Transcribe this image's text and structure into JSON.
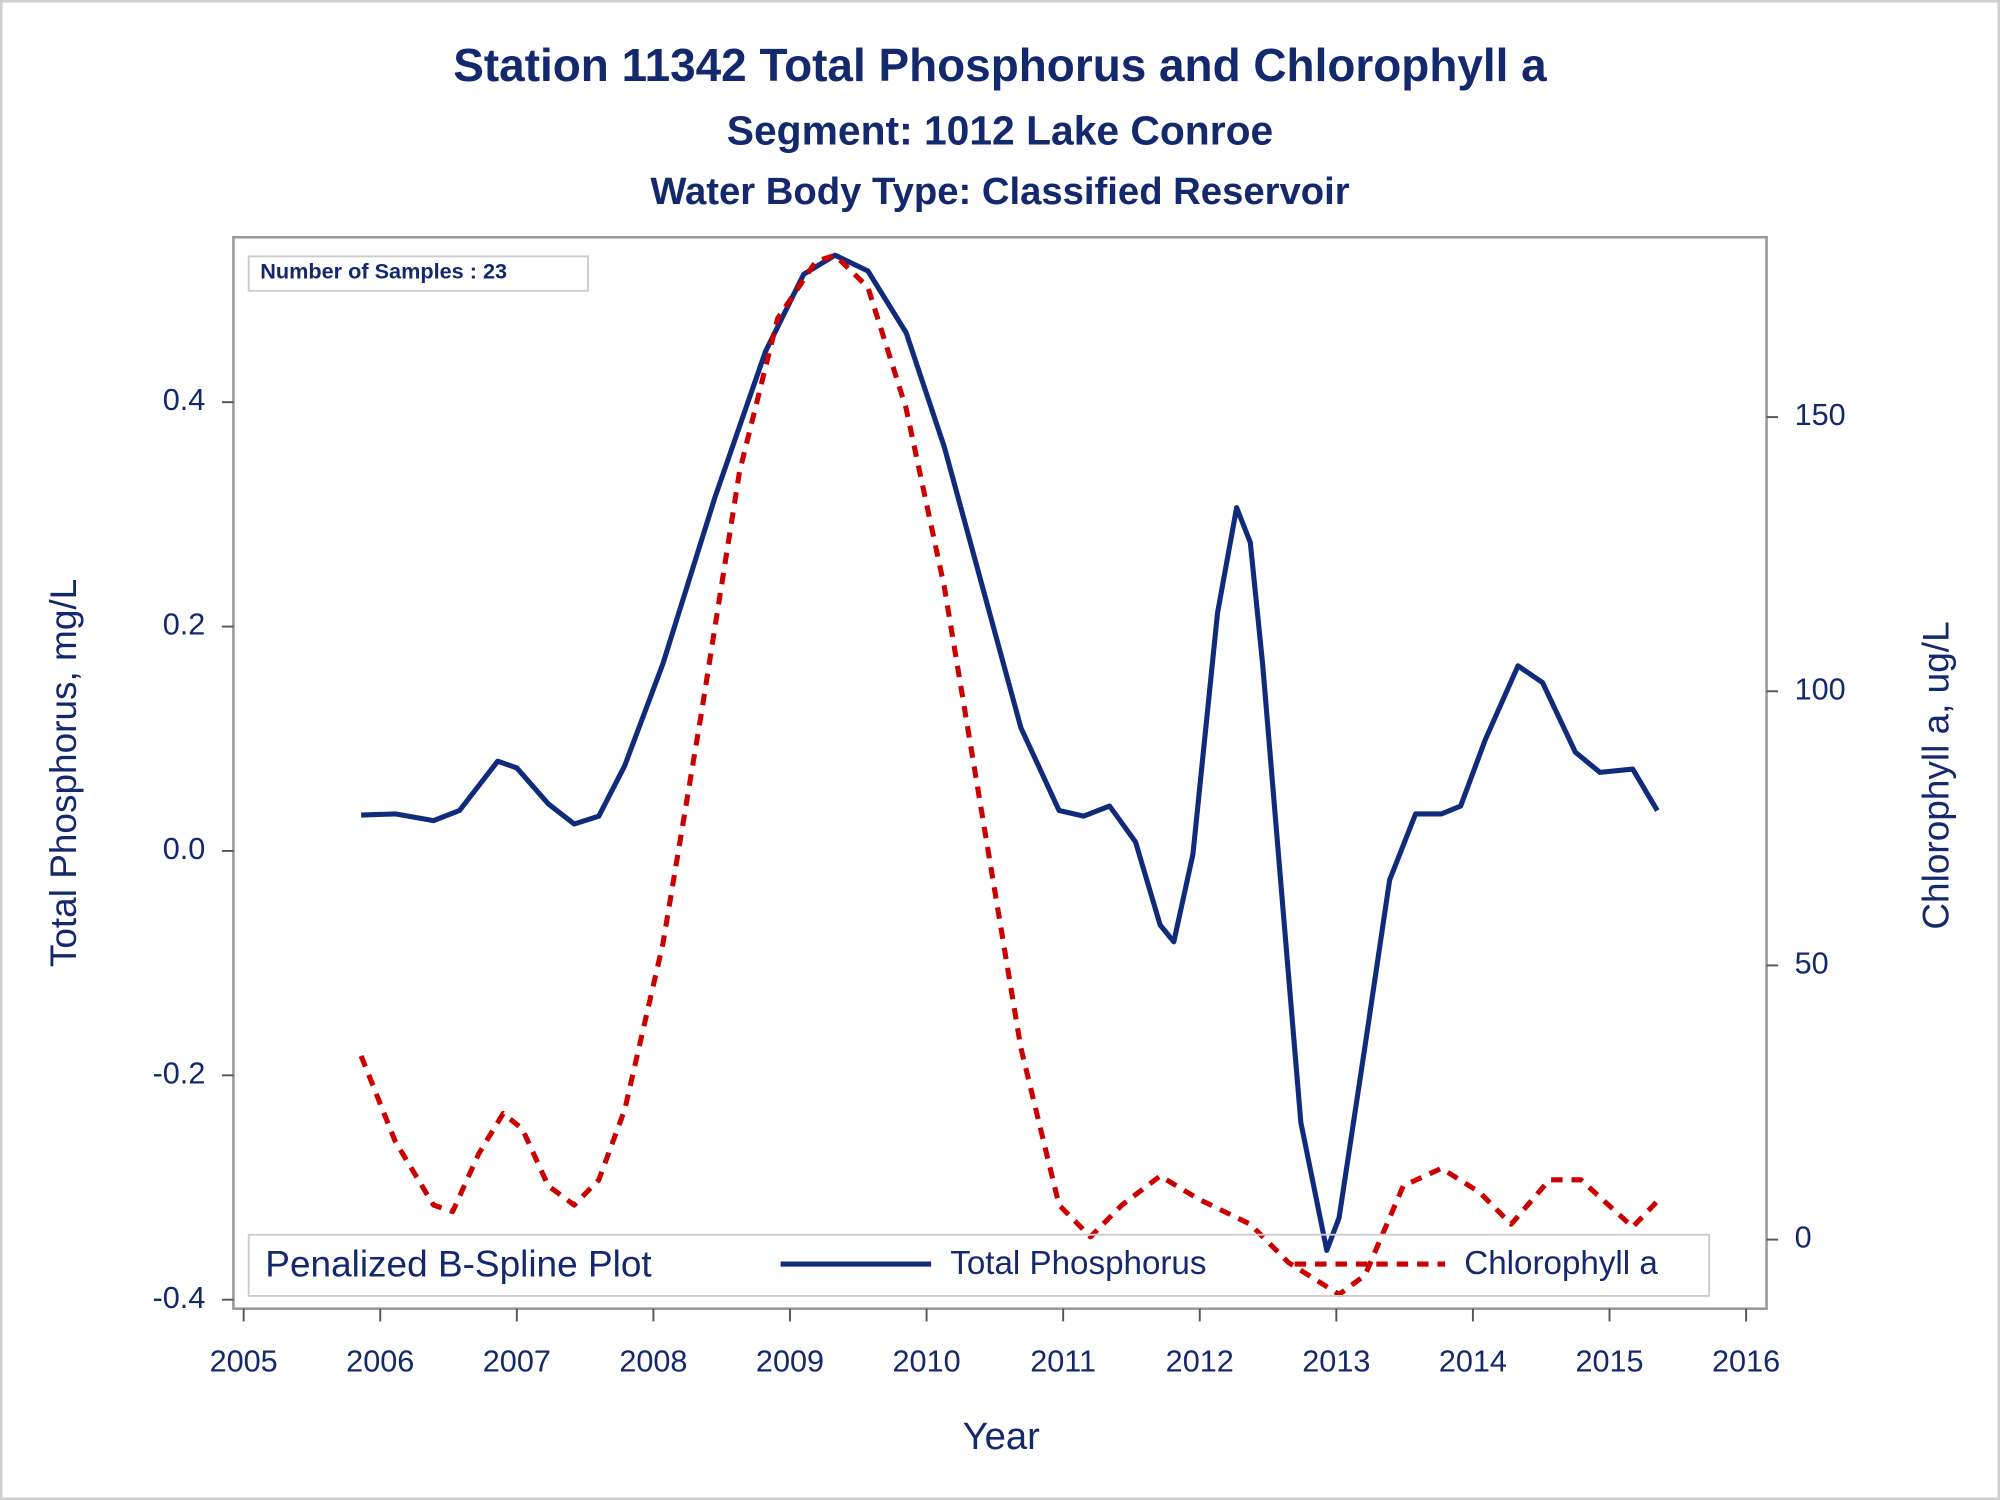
{
  "chart_data": {
    "type": "line",
    "title": "Station 11342  Total Phosphorus and Chlorophyll a",
    "subtitle": "Segment: 1012  Lake Conroe",
    "subtitle2": "Water Body Type: Classified Reservoir",
    "annotation": "Number of Samples : 23",
    "x_label": "Year",
    "y_label": "Total Phosphorus, mg/L",
    "y2_label": "Chlorophyll a, ug/L",
    "legend_title": "Penalized B-Spline Plot",
    "legend": "bottom",
    "xlim": [
      2004.925,
      2016.15
    ],
    "xticks": [
      2005,
      2006,
      2007,
      2008,
      2009,
      2010,
      2011,
      2012,
      2013,
      2014,
      2015,
      2016
    ],
    "ylim": [
      -0.408,
      0.547
    ],
    "yticks": [
      -0.4,
      -0.2,
      {
        "value": 0,
        "label": "0.0"
      },
      0.2,
      0.4
    ],
    "y2lim": [
      -12.6,
      182.8
    ],
    "y2ticks": [
      0,
      50,
      100,
      150
    ],
    "series": [
      {
        "name": "Total Phosphorus",
        "color": "#102a7c",
        "dash": false,
        "x": [
          2005.86,
          2006.11,
          2006.39,
          2006.58,
          2006.86,
          2007.0,
          2007.23,
          2007.42,
          2007.6,
          2007.79,
          2008.07,
          2008.45,
          2008.82,
          2009.1,
          2009.33,
          2009.57,
          2009.85,
          2010.13,
          2010.41,
          2010.69,
          2010.97,
          2011.15,
          2011.34,
          2011.53,
          2011.71,
          2011.81,
          2011.95,
          2012.13,
          2012.27,
          2012.37,
          2012.46,
          2012.6,
          2012.74,
          2012.93,
          2013.02,
          2013.21,
          2013.39,
          2013.58,
          2013.77,
          2013.91,
          2014.09,
          2014.33,
          2014.51,
          2014.75,
          2014.93,
          2015.17,
          2015.35
        ],
        "values": [
          0.032,
          0.033,
          0.027,
          0.036,
          0.08,
          0.074,
          0.042,
          0.024,
          0.031,
          0.076,
          0.167,
          0.315,
          0.445,
          0.514,
          0.531,
          0.517,
          0.462,
          0.36,
          0.235,
          0.11,
          0.036,
          0.031,
          0.04,
          0.008,
          -0.066,
          -0.081,
          -0.003,
          0.212,
          0.306,
          0.275,
          0.167,
          -0.038,
          -0.242,
          -0.356,
          -0.327,
          -0.174,
          -0.026,
          0.033,
          0.033,
          0.04,
          0.099,
          0.165,
          0.15,
          0.088,
          0.07,
          0.073,
          0.036
        ]
      },
      {
        "name": "Chlorophyll a",
        "color": "#cc0000",
        "dash": true,
        "axis": "y2",
        "x": [
          2005.86,
          2006.11,
          2006.39,
          2006.53,
          2006.72,
          2006.9,
          2007.04,
          2007.23,
          2007.42,
          2007.6,
          2007.79,
          2008.07,
          2008.35,
          2008.63,
          2008.91,
          2009.19,
          2009.33,
          2009.57,
          2009.85,
          2010.13,
          2010.41,
          2010.69,
          2010.97,
          2011.2,
          2011.43,
          2011.71,
          2011.99,
          2012.37,
          2012.65,
          2013.02,
          2013.21,
          2013.49,
          2013.77,
          2014.05,
          2014.28,
          2014.56,
          2014.79,
          2015.17,
          2015.35
        ],
        "values": [
          33.5,
          17.9,
          6.3,
          5.1,
          15.6,
          23.0,
          20.2,
          9.8,
          6.3,
          10.9,
          23.7,
          54,
          95.8,
          140,
          168,
          178.4,
          179.5,
          173.7,
          151.6,
          119,
          77,
          35,
          6.3,
          0.5,
          6.3,
          11.6,
          7.4,
          2.8,
          -4.2,
          -10,
          -6.5,
          9.8,
          13,
          8.6,
          2.8,
          10.9,
          10.9,
          2.3,
          7
        ]
      }
    ]
  }
}
